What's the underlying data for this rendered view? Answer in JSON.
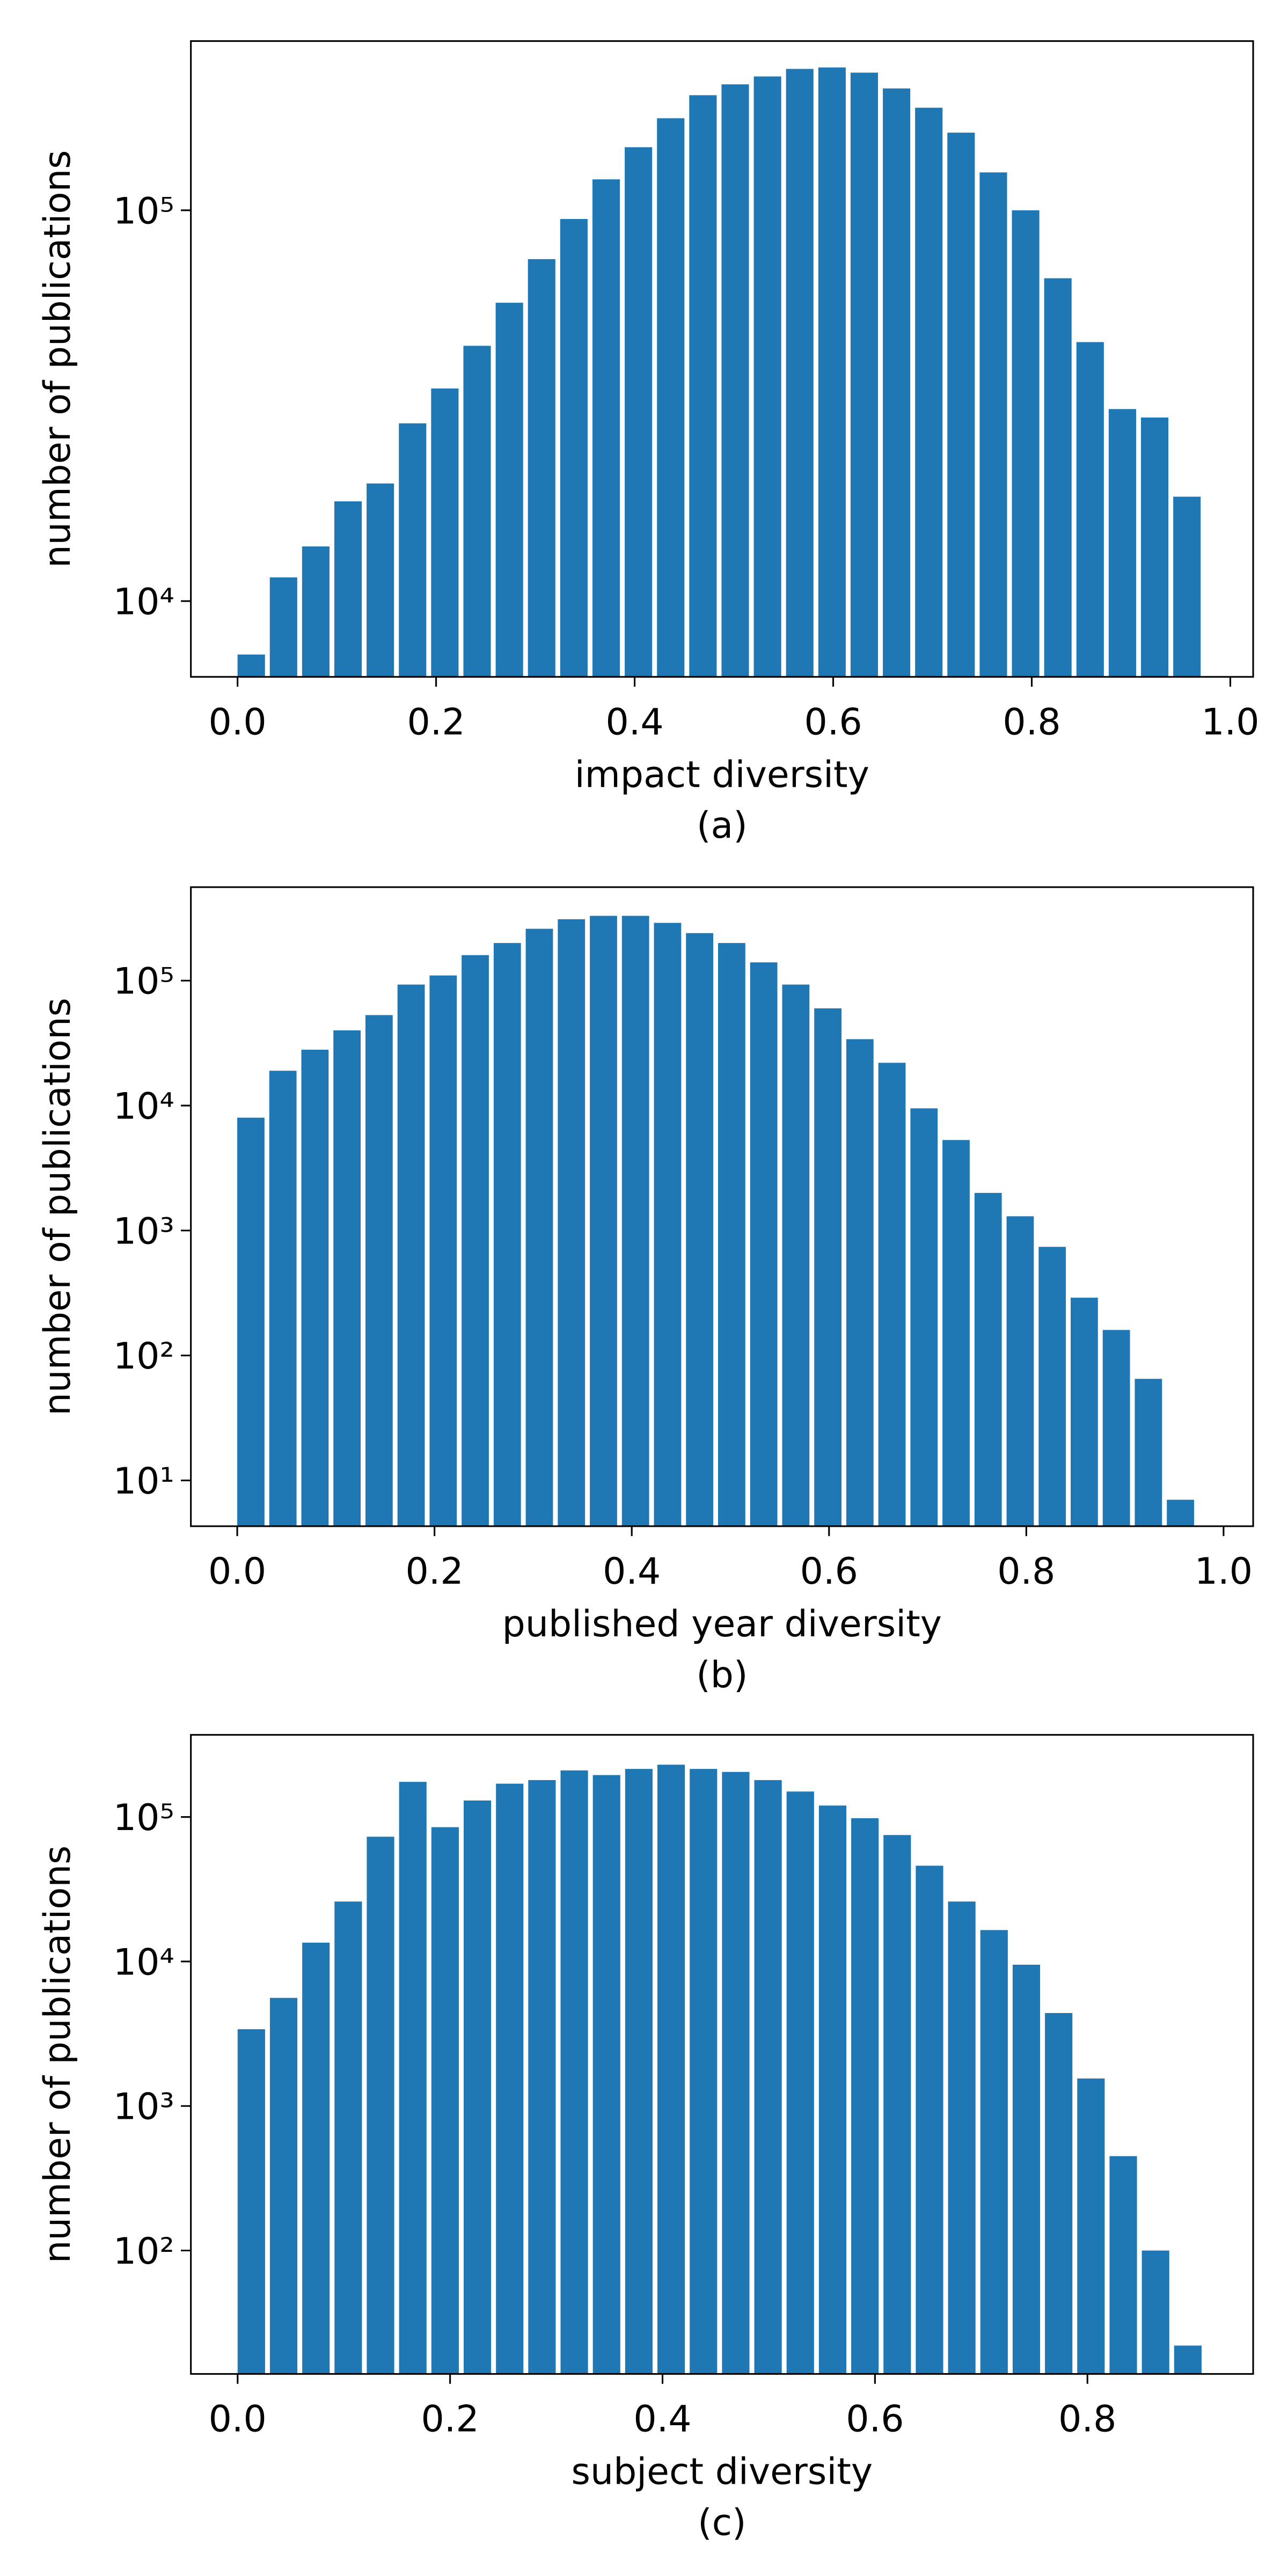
{
  "chart_data": [
    {
      "type": "histogram",
      "caption": "(a)",
      "xlabel": "impact diversity",
      "ylabel": "number of publications",
      "color": "#1f77b4",
      "log_y": true,
      "bins": [
        0,
        0.0325,
        0.065,
        0.0975,
        0.13,
        0.1625,
        0.195,
        0.2275,
        0.26,
        0.2925,
        0.325,
        0.3575,
        0.39,
        0.4225,
        0.455,
        0.4875,
        0.52,
        0.5525,
        0.585,
        0.6175,
        0.65,
        0.6825,
        0.715,
        0.7475,
        0.78,
        0.8125,
        0.845,
        0.8775,
        0.91,
        0.9425,
        0.975
      ],
      "values": [
        7300,
        11500,
        13800,
        18000,
        20000,
        28500,
        35000,
        45000,
        58000,
        75000,
        95000,
        120000,
        145000,
        172000,
        197000,
        210000,
        220000,
        230000,
        232000,
        225000,
        205000,
        183000,
        158000,
        125000,
        100000,
        67000,
        46000,
        31000,
        29500,
        18500
      ],
      "xlim": [
        -0.047,
        1.023
      ],
      "xticks": [
        {
          "value": 0,
          "label": "0.0"
        },
        0.2,
        0.4,
        0.6,
        0.8,
        {
          "value": 1,
          "label": "1.0"
        }
      ],
      "ylim": [
        6400,
        271000
      ],
      "yticks": [
        {
          "value": 10000,
          "label": "10⁴"
        },
        {
          "value": 100000,
          "label": "10⁵"
        }
      ]
    },
    {
      "type": "histogram",
      "caption": "(b)",
      "xlabel": "published year diversity",
      "ylabel": "number of publications",
      "color": "#1f77b4",
      "log_y": true,
      "bins": [
        0,
        0.0325,
        0.065,
        0.0975,
        0.13,
        0.1625,
        0.195,
        0.2275,
        0.26,
        0.2925,
        0.325,
        0.3575,
        0.39,
        0.4225,
        0.455,
        0.4875,
        0.52,
        0.5525,
        0.585,
        0.6175,
        0.65,
        0.6825,
        0.715,
        0.7475,
        0.78,
        0.8125,
        0.845,
        0.8775,
        0.91,
        0.9425,
        0.975
      ],
      "values": [
        8000,
        19000,
        28000,
        40000,
        53000,
        93000,
        110000,
        160000,
        200000,
        260000,
        310000,
        330000,
        330000,
        290000,
        240000,
        200000,
        140000,
        93000,
        60000,
        34000,
        22000,
        9500,
        5300,
        2000,
        1300,
        740,
        290,
        160,
        65,
        7
      ],
      "xlim": [
        -0.047,
        1.03
      ],
      "xticks": [
        {
          "value": 0,
          "label": "0.0"
        },
        0.2,
        0.4,
        0.6,
        0.8,
        {
          "value": 1,
          "label": "1.0"
        }
      ],
      "ylim": [
        4.3,
        560000
      ],
      "yticks": [
        {
          "value": 10,
          "label": "10¹"
        },
        {
          "value": 100,
          "label": "10²"
        },
        {
          "value": 1000,
          "label": "10³"
        },
        {
          "value": 10000,
          "label": "10⁴"
        },
        {
          "value": 100000,
          "label": "10⁵"
        }
      ]
    },
    {
      "type": "histogram",
      "caption": "(c)",
      "xlabel": "subject diversity",
      "ylabel": "number of publications",
      "color": "#1f77b4",
      "log_y": true,
      "bins": [
        0,
        0.0304,
        0.0608,
        0.0912,
        0.1216,
        0.152,
        0.1824,
        0.2128,
        0.2432,
        0.2736,
        0.304,
        0.3344,
        0.3648,
        0.3952,
        0.4256,
        0.456,
        0.4864,
        0.5168,
        0.5472,
        0.5776,
        0.608,
        0.6384,
        0.6688,
        0.6992,
        0.7296,
        0.76,
        0.7904,
        0.8208,
        0.8512,
        0.8816,
        0.912
      ],
      "values": [
        3400,
        5600,
        13500,
        26000,
        73000,
        175000,
        85000,
        130000,
        170000,
        180000,
        210000,
        195000,
        215000,
        230000,
        215000,
        205000,
        180000,
        150000,
        120000,
        98000,
        75000,
        46000,
        26000,
        16500,
        9500,
        4400,
        1550,
        450,
        100,
        22
      ],
      "xlim": [
        -0.044,
        0.956
      ],
      "xticks": [
        {
          "value": 0,
          "label": "0.0"
        },
        0.2,
        0.4,
        0.6,
        0.8
      ],
      "ylim": [
        14,
        370000
      ],
      "yticks": [
        {
          "value": 100,
          "label": "10²"
        },
        {
          "value": 1000,
          "label": "10³"
        },
        {
          "value": 10000,
          "label": "10⁴"
        },
        {
          "value": 100000,
          "label": "10⁵"
        }
      ]
    }
  ]
}
